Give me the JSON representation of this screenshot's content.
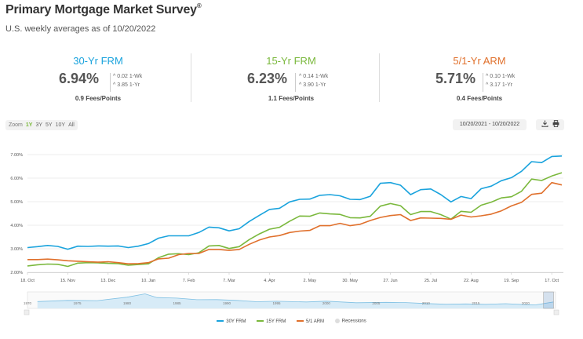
{
  "header": {
    "title": "Primary Mortgage Market Survey",
    "title_mark": "®",
    "subtitle": "U.S. weekly averages as of 10/20/2022"
  },
  "cards": [
    {
      "label": "30-Yr FRM",
      "rate": "6.94%",
      "wk": "0.02 1-Wk",
      "yr": "3.85 1-Yr",
      "fees": "0.9 Fees/Points",
      "color": "#1aa3dd"
    },
    {
      "label": "15-Yr FRM",
      "rate": "6.23%",
      "wk": "0.14 1-Wk",
      "yr": "3.90 1-Yr",
      "fees": "1.1 Fees/Points",
      "color": "#7ab83c"
    },
    {
      "label": "5/1-Yr ARM",
      "rate": "5.71%",
      "wk": "0.10 1-Wk",
      "yr": "3.17 1-Yr",
      "fees": "0.4 Fees/Points",
      "color": "#e0702c"
    }
  ],
  "toolbar": {
    "zoom_label": "Zoom",
    "zoom_options": [
      "1Y",
      "3Y",
      "5Y",
      "10Y",
      "All"
    ],
    "zoom_selected": "1Y",
    "date_range": "10/20/2021 - 10/20/2022",
    "download_icon": "download-icon",
    "print_icon": "print-icon"
  },
  "chart_data": {
    "type": "line",
    "y_ticks": [
      "2.00%",
      "3.00%",
      "4.00%",
      "5.00%",
      "6.00%",
      "7.00%"
    ],
    "ylim": [
      2.0,
      7.3
    ],
    "x_tick_labels": [
      "18. Oct",
      "15. Nov",
      "13. Dec",
      "10. Jan",
      "7. Feb",
      "7. Mar",
      "4. Apr",
      "2. May",
      "30. May",
      "27. Jun",
      "25. Jul",
      "22. Aug",
      "19. Sep",
      "17. Oct"
    ],
    "series": [
      {
        "name": "30Y FRM",
        "color": "#1aa3dd",
        "values": [
          3.05,
          3.09,
          3.14,
          3.1,
          2.98,
          3.11,
          3.1,
          3.12,
          3.11,
          3.12,
          3.05,
          3.11,
          3.22,
          3.45,
          3.55,
          3.55,
          3.55,
          3.69,
          3.92,
          3.89,
          3.76,
          3.85,
          4.16,
          4.42,
          4.67,
          4.72,
          4.99,
          5.1,
          5.11,
          5.27,
          5.3,
          5.25,
          5.1,
          5.09,
          5.23,
          5.78,
          5.81,
          5.7,
          5.3,
          5.51,
          5.54,
          5.3,
          4.99,
          5.22,
          5.13,
          5.55,
          5.66,
          5.89,
          6.02,
          6.29,
          6.7,
          6.66,
          6.92,
          6.94
        ]
      },
      {
        "name": "15Y FRM",
        "color": "#7ab83c",
        "values": [
          2.27,
          2.32,
          2.35,
          2.34,
          2.25,
          2.39,
          2.41,
          2.4,
          2.38,
          2.37,
          2.3,
          2.33,
          2.36,
          2.62,
          2.77,
          2.79,
          2.75,
          2.83,
          3.12,
          3.14,
          3.01,
          3.09,
          3.39,
          3.63,
          3.83,
          3.91,
          4.17,
          4.39,
          4.38,
          4.52,
          4.48,
          4.46,
          4.32,
          4.31,
          4.38,
          4.81,
          4.92,
          4.83,
          4.45,
          4.58,
          4.58,
          4.45,
          4.26,
          4.59,
          4.55,
          4.85,
          4.98,
          5.16,
          5.21,
          5.44,
          5.96,
          5.9,
          6.09,
          6.23
        ]
      },
      {
        "name": "5/1 ARM",
        "color": "#e0702c",
        "values": [
          2.54,
          2.54,
          2.56,
          2.53,
          2.49,
          2.47,
          2.45,
          2.43,
          2.45,
          2.41,
          2.36,
          2.37,
          2.41,
          2.57,
          2.6,
          2.75,
          2.8,
          2.8,
          2.97,
          2.97,
          2.93,
          2.97,
          3.19,
          3.37,
          3.5,
          3.56,
          3.69,
          3.75,
          3.78,
          3.98,
          3.98,
          4.08,
          3.98,
          4.04,
          4.2,
          4.33,
          4.41,
          4.45,
          4.2,
          4.31,
          4.3,
          4.29,
          4.25,
          4.43,
          4.35,
          4.4,
          4.47,
          4.61,
          4.82,
          4.97,
          5.31,
          5.36,
          5.81,
          5.71
        ]
      }
    ],
    "navigator_labels": [
      "1970",
      "1975",
      "1980",
      "1985",
      "1990",
      "1995",
      "2000",
      "2005",
      "2010",
      "2015",
      "2020"
    ],
    "legend": [
      "30Y FRM",
      "15Y FRM",
      "5/1 ARM",
      "Recessions"
    ],
    "legend_placement": "bottom",
    "grid": true
  }
}
